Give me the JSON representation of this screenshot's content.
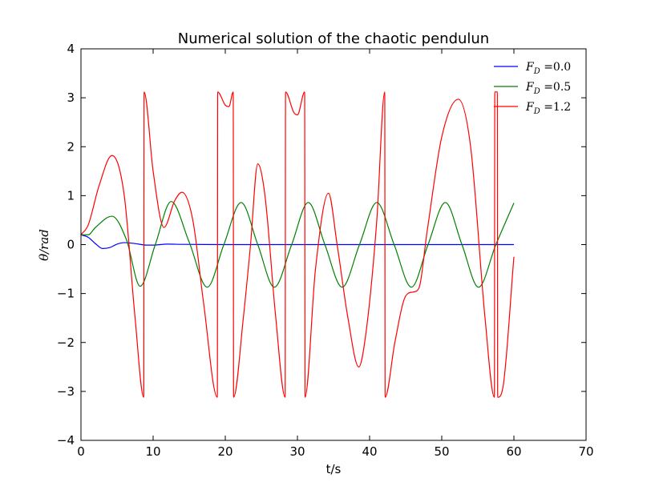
{
  "chart_data": {
    "type": "line",
    "title": "Numerical solution of the chaotic pendulun",
    "xlabel": "t/s",
    "ylabel": "θ/rad",
    "xlim": [
      0,
      70
    ],
    "xticks": [
      0,
      10,
      20,
      30,
      40,
      50,
      60,
      70
    ],
    "ylim": [
      -4,
      4
    ],
    "yticks": [
      {
        "value": -4,
        "label": "−4"
      },
      {
        "value": -3,
        "label": "−3"
      },
      {
        "value": -2,
        "label": "−2"
      },
      {
        "value": -1,
        "label": "−1"
      },
      0,
      1,
      2,
      3,
      4
    ],
    "legend": "upper right",
    "series": [
      {
        "name": "FD =0.0",
        "color": "#0000ff",
        "x": [
          0,
          1,
          2,
          3,
          4,
          5,
          6,
          7,
          8,
          9,
          10,
          12,
          14,
          20,
          60
        ],
        "values": [
          0.2,
          0.15,
          0.02,
          -0.08,
          -0.06,
          0.01,
          0.04,
          0.03,
          0.01,
          -0.01,
          -0.01,
          0.01,
          0.005,
          0,
          0
        ]
      },
      {
        "name": "FD =0.5",
        "color": "#008000",
        "x": [
          0,
          1,
          2,
          4.3,
          6.3,
          8.2,
          10.3,
          12.5,
          15,
          17.5,
          19.8,
          22.2,
          24.5,
          26.8,
          29.2,
          31.5,
          33.8,
          36.2,
          38.6,
          41,
          43.4,
          45.8,
          48.1,
          50.5,
          52.8,
          55.1,
          57.5,
          60
        ],
        "values": [
          0.2,
          0.2,
          0.35,
          0.58,
          0.1,
          -0.85,
          0,
          0.88,
          0.05,
          -0.87,
          0,
          0.86,
          0,
          -0.87,
          0,
          0.86,
          0,
          -0.87,
          0,
          0.86,
          0,
          -0.87,
          0,
          0.86,
          0,
          -0.87,
          0,
          0.85
        ]
      },
      {
        "name": "FD =1.2",
        "color": "#ff0000",
        "x": [
          0,
          1,
          2.5,
          4.3,
          6,
          7.5,
          8.7,
          8.75,
          10,
          11.5,
          13,
          14,
          15.5,
          17,
          18.9,
          18.95,
          20,
          20.5,
          21.1,
          21.15,
          22.5,
          23.5,
          24.5,
          25.5,
          27,
          28.3,
          28.35,
          29.5,
          30,
          31,
          31.05,
          32.5,
          34.3,
          35.5,
          37,
          38.5,
          39.5,
          41,
          42.1,
          42.15,
          43.5,
          45,
          46,
          46.8,
          48,
          50,
          52.3,
          54,
          56,
          57.3,
          57.35,
          57.7,
          57.75,
          58.5,
          60
        ],
        "values": [
          0.2,
          0.4,
          1.2,
          1.82,
          1.0,
          -1.5,
          -3.12,
          3.12,
          1.5,
          0.35,
          0.9,
          1.07,
          0.5,
          -1.2,
          -3.12,
          3.12,
          2.85,
          2.82,
          3.12,
          -3.12,
          -1.5,
          0,
          1.65,
          1.0,
          -1.5,
          -3.12,
          3.12,
          2.7,
          2.65,
          3.12,
          -3.12,
          -0.5,
          1.05,
          0,
          -1.5,
          -2.5,
          -1.8,
          0.5,
          3.12,
          -3.12,
          -2.0,
          -1.05,
          -0.97,
          -0.9,
          0.3,
          2.2,
          2.97,
          2.0,
          -1.5,
          -3.12,
          3.12,
          3.12,
          -3.12,
          -2.9,
          -0.25
        ]
      }
    ]
  }
}
